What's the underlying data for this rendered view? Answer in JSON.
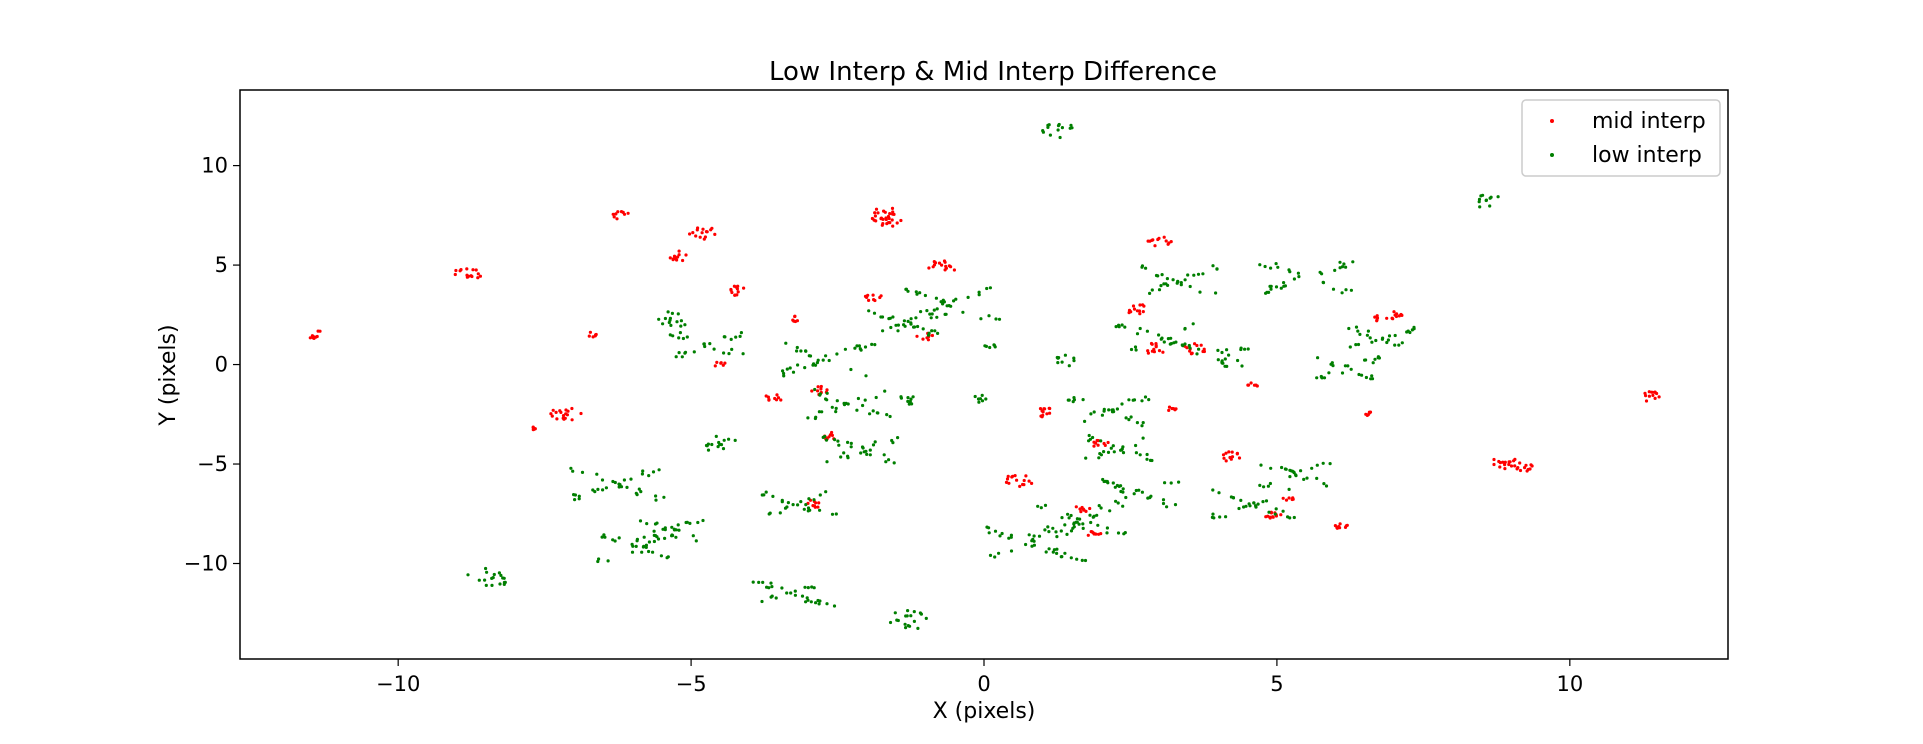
{
  "chart_data": {
    "type": "scatter",
    "title": "Low Interp & Mid Interp Difference",
    "xlabel": "X (pixels)",
    "ylabel": "Y (pixels)",
    "xlim": [
      -12.7,
      12.7
    ],
    "ylim": [
      -14.8,
      13.8
    ],
    "xticks": [
      -10,
      -5,
      0,
      5,
      10
    ],
    "yticks": [
      -10,
      -5,
      0,
      5,
      10
    ],
    "xtick_labels": [
      "−10",
      "−5",
      "0",
      "5",
      "10"
    ],
    "ytick_labels": [
      "−10",
      "−5",
      "0",
      "5",
      "10"
    ],
    "grid": false,
    "legend_position": "top-right",
    "series": [
      {
        "name": "mid interp",
        "color": "#ff0000",
        "clusters": [
          {
            "x": -11.4,
            "y": 1.5,
            "r": 0.15
          },
          {
            "x": -8.8,
            "y": 4.6,
            "r": 0.25
          },
          {
            "x": -7.1,
            "y": -2.5,
            "r": 0.3
          },
          {
            "x": -6.7,
            "y": 1.5,
            "r": 0.1
          },
          {
            "x": -6.2,
            "y": 7.5,
            "r": 0.15
          },
          {
            "x": -5.2,
            "y": 5.5,
            "r": 0.2
          },
          {
            "x": -4.8,
            "y": 6.6,
            "r": 0.25
          },
          {
            "x": -4.5,
            "y": 0.0,
            "r": 0.1
          },
          {
            "x": -4.2,
            "y": 3.7,
            "r": 0.2
          },
          {
            "x": -3.6,
            "y": -1.7,
            "r": 0.15
          },
          {
            "x": -3.2,
            "y": 2.3,
            "r": 0.1
          },
          {
            "x": -2.8,
            "y": -1.3,
            "r": 0.15
          },
          {
            "x": -2.9,
            "y": -7.0,
            "r": 0.15
          },
          {
            "x": -2.6,
            "y": -3.6,
            "r": 0.15
          },
          {
            "x": -1.9,
            "y": 3.4,
            "r": 0.15
          },
          {
            "x": -1.8,
            "y": 7.6,
            "r": 0.3
          },
          {
            "x": -1.6,
            "y": 7.2,
            "r": 0.2
          },
          {
            "x": -1.0,
            "y": 1.4,
            "r": 0.15
          },
          {
            "x": -0.7,
            "y": 4.9,
            "r": 0.25
          },
          {
            "x": 0.6,
            "y": -5.8,
            "r": 0.25
          },
          {
            "x": 1.0,
            "y": -2.4,
            "r": 0.2
          },
          {
            "x": 1.7,
            "y": -7.2,
            "r": 0.15
          },
          {
            "x": 1.9,
            "y": -8.5,
            "r": 0.15
          },
          {
            "x": 2.0,
            "y": -4.0,
            "r": 0.15
          },
          {
            "x": 2.6,
            "y": 2.8,
            "r": 0.2
          },
          {
            "x": 2.9,
            "y": 0.8,
            "r": 0.2
          },
          {
            "x": 3.0,
            "y": 6.2,
            "r": 0.2
          },
          {
            "x": 3.2,
            "y": -2.2,
            "r": 0.1
          },
          {
            "x": 3.6,
            "y": 0.8,
            "r": 0.2
          },
          {
            "x": 4.2,
            "y": -4.6,
            "r": 0.2
          },
          {
            "x": 4.6,
            "y": -1.0,
            "r": 0.1
          },
          {
            "x": 4.9,
            "y": -7.5,
            "r": 0.2
          },
          {
            "x": 5.2,
            "y": -6.7,
            "r": 0.1
          },
          {
            "x": 6.1,
            "y": -8.2,
            "r": 0.15
          },
          {
            "x": 6.6,
            "y": -2.5,
            "r": 0.1
          },
          {
            "x": 6.9,
            "y": 2.4,
            "r": 0.25
          },
          {
            "x": 8.9,
            "y": -4.9,
            "r": 0.25
          },
          {
            "x": 9.2,
            "y": -5.2,
            "r": 0.2
          },
          {
            "x": 11.4,
            "y": -1.6,
            "r": 0.2
          },
          {
            "x": -7.7,
            "y": -3.2,
            "r": 0.05
          }
        ]
      },
      {
        "name": "low interp",
        "color": "#007f00",
        "clusters": [
          {
            "x": -6.3,
            "y": -6.0,
            "r": 0.8
          },
          {
            "x": -5.9,
            "y": -9.2,
            "r": 0.7
          },
          {
            "x": -5.4,
            "y": -8.3,
            "r": 0.6
          },
          {
            "x": -8.5,
            "y": -10.8,
            "r": 0.4
          },
          {
            "x": -4.5,
            "y": -4.0,
            "r": 0.3
          },
          {
            "x": -5.3,
            "y": 2.3,
            "r": 0.3
          },
          {
            "x": -4.7,
            "y": 1.0,
            "r": 0.6
          },
          {
            "x": -3.2,
            "y": -7.0,
            "r": 0.6
          },
          {
            "x": -3.3,
            "y": -11.5,
            "r": 0.7
          },
          {
            "x": -2.7,
            "y": 0.3,
            "r": 0.8
          },
          {
            "x": -2.3,
            "y": -2.0,
            "r": 0.7
          },
          {
            "x": -2.1,
            "y": -4.3,
            "r": 0.7
          },
          {
            "x": -1.3,
            "y": 2.0,
            "r": 0.7
          },
          {
            "x": -0.6,
            "y": 3.0,
            "r": 0.8
          },
          {
            "x": -1.3,
            "y": -12.8,
            "r": 0.4
          },
          {
            "x": -1.3,
            "y": -1.8,
            "r": 0.2
          },
          {
            "x": 0.1,
            "y": 0.9,
            "r": 0.1
          },
          {
            "x": -0.1,
            "y": -1.7,
            "r": 0.15
          },
          {
            "x": 1.3,
            "y": 11.8,
            "r": 0.3
          },
          {
            "x": 1.4,
            "y": 0.2,
            "r": 0.2
          },
          {
            "x": 0.8,
            "y": -9.0,
            "r": 0.9
          },
          {
            "x": 1.6,
            "y": -7.8,
            "r": 0.8
          },
          {
            "x": 2.1,
            "y": -2.3,
            "r": 0.7
          },
          {
            "x": 2.3,
            "y": -4.2,
            "r": 0.6
          },
          {
            "x": 2.6,
            "y": -6.5,
            "r": 0.7
          },
          {
            "x": 3.3,
            "y": 4.2,
            "r": 0.7
          },
          {
            "x": 3.0,
            "y": 1.3,
            "r": 0.7
          },
          {
            "x": 4.3,
            "y": 0.4,
            "r": 0.4
          },
          {
            "x": 4.6,
            "y": -7.0,
            "r": 0.7
          },
          {
            "x": 5.3,
            "y": -5.5,
            "r": 0.6
          },
          {
            "x": 5.5,
            "y": 4.4,
            "r": 0.8
          },
          {
            "x": 6.2,
            "y": -0.2,
            "r": 0.6
          },
          {
            "x": 6.8,
            "y": 1.3,
            "r": 0.6
          },
          {
            "x": 8.6,
            "y": 8.2,
            "r": 0.25
          }
        ]
      }
    ]
  }
}
